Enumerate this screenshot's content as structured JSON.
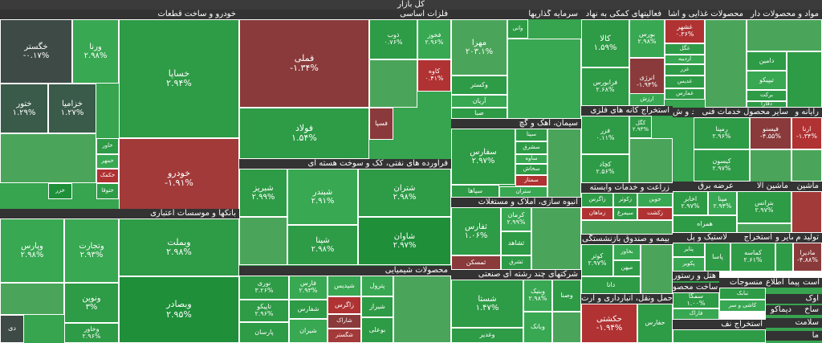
{
  "window": {
    "title": "کل بازار"
  },
  "sectors": [
    {
      "title": "خودرو و ساخت قطعات",
      "stocks": [
        {
          "name": "خساپا",
          "change": "۲.۹۴%"
        },
        {
          "name": "خودرو",
          "change": "-۱.۹۱%"
        },
        {
          "name": "ورنا",
          "change": "۲.۹۸%"
        },
        {
          "name": "خگستر",
          "change": "-۰.۱۷%"
        },
        {
          "name": "خزامیا",
          "change": "۱.۲۷%"
        },
        {
          "name": "ختور",
          "change": "۱.۲۹%"
        },
        {
          "name": "خاور",
          "change": ""
        },
        {
          "name": "خمهر",
          "change": ""
        },
        {
          "name": "خکمک",
          "change": ""
        },
        {
          "name": "ختوقا",
          "change": ""
        },
        {
          "name": "خزر",
          "change": ""
        }
      ]
    },
    {
      "title": "بانکها و موسسات اعتباری",
      "stocks": [
        {
          "name": "وبملت",
          "change": "۲.۹۸%"
        },
        {
          "name": "وبصادر",
          "change": "۲.۹۵%"
        },
        {
          "name": "وتجارت",
          "change": "۲.۹۳%"
        },
        {
          "name": "وپارس",
          "change": "۲.۹۸%"
        },
        {
          "name": "ونوین",
          "change": "۳%"
        },
        {
          "name": "وخاور",
          "change": "۲.۹۶%"
        },
        {
          "name": "دی",
          "change": ""
        }
      ]
    },
    {
      "title": "فلزات اساسی",
      "stocks": [
        {
          "name": "فملی",
          "change": "-۱.۳۴%"
        },
        {
          "name": "فولاد",
          "change": "۱.۵۴%"
        },
        {
          "name": "ذوب",
          "change": "۰.۷۶%"
        },
        {
          "name": "فخوز",
          "change": "۲.۹۶%"
        },
        {
          "name": "کاوه",
          "change": "۰.۴۱%"
        },
        {
          "name": "فسپا",
          "change": ""
        }
      ]
    },
    {
      "title": "فراورده های نفتی، کک و سوخت هسته ای",
      "stocks": [
        {
          "name": "شتران",
          "change": "۲.۹۸%"
        },
        {
          "name": "شبندر",
          "change": "۲.۹۱%"
        },
        {
          "name": "شپنا",
          "change": "۲.۹۸%"
        },
        {
          "name": "شبریز",
          "change": "۲.۹۹%"
        },
        {
          "name": "شاوان",
          "change": "۲.۹۷%"
        }
      ]
    },
    {
      "title": "محصولات شیمیایی",
      "stocks": [
        {
          "name": "نوری",
          "change": "۳.۲۶%"
        },
        {
          "name": "فارس",
          "change": "۲.۹۳%"
        },
        {
          "name": "تاپیکو",
          "change": "۲.۹۶%"
        },
        {
          "name": "شفارس",
          "change": ""
        },
        {
          "name": "پارسان",
          "change": ""
        },
        {
          "name": "شیران",
          "change": ""
        },
        {
          "name": "شپدیس",
          "change": ""
        },
        {
          "name": "زاگرس",
          "change": ""
        },
        {
          "name": "شاراک",
          "change": ""
        },
        {
          "name": "شگستر",
          "change": ""
        },
        {
          "name": "پترول",
          "change": ""
        },
        {
          "name": "شیراز",
          "change": ""
        },
        {
          "name": "بوعلی",
          "change": ""
        }
      ]
    },
    {
      "title": "سرمایه گذاریها",
      "stocks": [
        {
          "name": "مهرا",
          "change": "۲۰۳.۱%"
        },
        {
          "name": "وکستر",
          "change": ""
        },
        {
          "name": "واتی",
          "change": ""
        },
        {
          "name": "آریان",
          "change": ""
        },
        {
          "name": "صبا",
          "change": ""
        }
      ]
    },
    {
      "title": "سیمان، آهک و گچ",
      "stocks": [
        {
          "name": "سفارس",
          "change": "۲.۹۷%"
        },
        {
          "name": "سپتا",
          "change": ""
        },
        {
          "name": "سشرق",
          "change": ""
        },
        {
          "name": "ساوه",
          "change": ""
        },
        {
          "name": "سپاها",
          "change": ""
        },
        {
          "name": "سصوفی",
          "change": ""
        },
        {
          "name": "سخاش",
          "change": ""
        },
        {
          "name": "ستران",
          "change": ""
        },
        {
          "name": "سمتاز",
          "change": ""
        }
      ]
    },
    {
      "title": "انبوه سازی، املاک و مستغلات",
      "stocks": [
        {
          "name": "ثفارس",
          "change": "۱.۰۶%"
        },
        {
          "name": "کرمان",
          "change": "۲.۹۹%"
        },
        {
          "name": "ثشاهد",
          "change": ""
        },
        {
          "name": "ثشرق",
          "change": ""
        },
        {
          "name": "ثمسکن",
          "change": ""
        }
      ]
    },
    {
      "title": "شرکتهای چند رشته ای صنعتی",
      "stocks": [
        {
          "name": "شستا",
          "change": "۱.۴۷%"
        },
        {
          "name": "وبنیک",
          "change": "۲.۹۸%"
        },
        {
          "name": "وغدیر",
          "change": ""
        },
        {
          "name": "وصنا",
          "change": ""
        },
        {
          "name": "وبانک",
          "change": ""
        }
      ]
    },
    {
      "title": "فعالیتهای کمکی به نهاد",
      "stocks": [
        {
          "name": "کالا",
          "change": "۱.۵۹%"
        },
        {
          "name": "بورس",
          "change": "۲.۹۸%"
        },
        {
          "name": "فرابورس",
          "change": "۲.۶۸%"
        },
        {
          "name": "انرژی",
          "change": "-۱.۹۴%"
        },
        {
          "name": "ارزش",
          "change": ""
        }
      ]
    },
    {
      "title": "محصولات غذایی و آشا",
      "stocks": [
        {
          "name": "غشهر",
          "change": "۰.۳۶%"
        },
        {
          "name": "غگل",
          "change": ""
        },
        {
          "name": "غزر",
          "change": ""
        },
        {
          "name": "غدیس",
          "change": ""
        },
        {
          "name": "غمارس",
          "change": ""
        },
        {
          "name": "اردیبه",
          "change": ""
        }
      ]
    },
    {
      "title": "مواد و محصولات دار",
      "stocks": [
        {
          "name": "دامین",
          "change": ""
        },
        {
          "name": "تیپیکو",
          "change": ""
        },
        {
          "name": "برکت",
          "change": ""
        },
        {
          "name": "دفارا",
          "change": ""
        }
      ]
    },
    {
      "title": "استخراج کانه های فلزی",
      "stocks": [
        {
          "name": "فزر",
          "change": "۰.۱۱%"
        },
        {
          "name": "کگل",
          "change": "۲.۹۴%"
        },
        {
          "name": "کچاد",
          "change": "۲.۵۶%"
        }
      ]
    },
    {
      "title": "سایر محصول خدمات فنی",
      "stocks": [
        {
          "name": "رمپنا",
          "change": "۲.۹۶%"
        },
        {
          "name": "کیسون",
          "change": "۲.۹۷%"
        },
        {
          "name": "فیسنو",
          "change": "-۴.۵۵%"
        },
        {
          "name": "مخابرات",
          "change": ""
        }
      ]
    },
    {
      "title": "قند و ش",
      "stocks": []
    },
    {
      "title": "رایانه و",
      "stocks": [
        {
          "name": "ارنا",
          "change": "-۱.۳۴%"
        }
      ]
    },
    {
      "title": "زراعت و خدمات وابسته",
      "stocks": [
        {
          "name": "زاگرس",
          "change": ""
        },
        {
          "name": "زکوثر",
          "change": ""
        },
        {
          "name": "جوین",
          "change": ""
        },
        {
          "name": "زماهان",
          "change": ""
        },
        {
          "name": "سیمرغ",
          "change": ""
        },
        {
          "name": "زکشت",
          "change": ""
        }
      ]
    },
    {
      "title": "عرضه برق",
      "stocks": [
        {
          "name": "اخابر",
          "change": "۲.۹۷%"
        },
        {
          "name": "مپنا",
          "change": "۲.۹۴%"
        },
        {
          "name": "همراه",
          "change": ""
        }
      ]
    },
    {
      "title": "ماشین آلا",
      "stocks": [
        {
          "name": "بترانس",
          "change": "۲.۹۷%"
        }
      ]
    },
    {
      "title": "ماشین",
      "stocks": []
    },
    {
      "title": "بیمه و صندوق بازنشستگی",
      "stocks": [
        {
          "name": "کوثر",
          "change": "۲.۹۷%"
        },
        {
          "name": "بخاور",
          "change": ""
        },
        {
          "name": "میهن",
          "change": ""
        },
        {
          "name": "دانا",
          "change": ""
        }
      ]
    },
    {
      "title": "لاستیک و پل",
      "stocks": [
        {
          "name": "پتایر",
          "change": ""
        },
        {
          "name": "پکویر",
          "change": ""
        },
        {
          "name": "پاسا",
          "change": ""
        }
      ]
    },
    {
      "title": "استخراج",
      "stocks": [
        {
          "name": "کماسه",
          "change": "۲.۶۱%"
        }
      ]
    },
    {
      "title": "سایر و",
      "stocks": []
    },
    {
      "title": "تولید م",
      "stocks": [
        {
          "name": "مادیرا",
          "change": "-۴.۸۸%"
        }
      ]
    },
    {
      "title": "هتل و رستور",
      "stocks": []
    },
    {
      "title": "منسوجات",
      "stocks": [
        {
          "name": "نبابک",
          "change": ""
        },
        {
          "name": "کاشی و سر",
          "change": ""
        }
      ]
    },
    {
      "title": "حمل ونقل، انبارداری و ارت",
      "stocks": [
        {
          "name": "حکشتی",
          "change": "-۱.۹۴%"
        },
        {
          "name": "حفارس",
          "change": ""
        }
      ]
    },
    {
      "title": "ساخت محصو",
      "stocks": [
        {
          "name": "سمگا",
          "change": "۱.۰۰%"
        },
        {
          "name": "فاراک",
          "change": ""
        }
      ]
    },
    {
      "title": "استخراج نف",
      "stocks": []
    },
    {
      "title": "اطلاع",
      "stocks": []
    },
    {
      "title": "پیما",
      "stocks": []
    },
    {
      "title": "است",
      "stocks": []
    },
    {
      "title": "آوک",
      "stocks": []
    },
    {
      "title": "دیماکو",
      "stocks": []
    },
    {
      "title": "ساخ",
      "stocks": []
    },
    {
      "title": "سلامت",
      "stocks": []
    },
    {
      "title": "ما",
      "stocks": []
    }
  ]
}
